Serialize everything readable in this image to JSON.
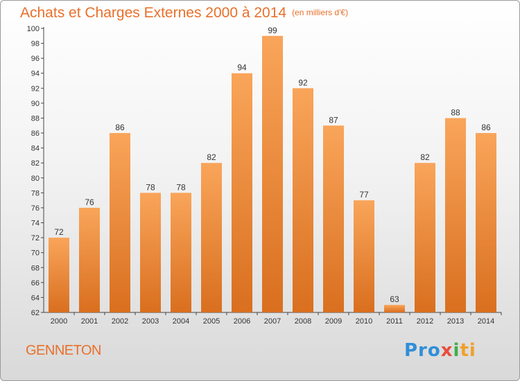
{
  "header": {
    "title": "Achats et Charges Externes 2000 à 2014",
    "unit": "(en milliers d'€)"
  },
  "footer": {
    "commune": "GENNETON",
    "brand_parts": [
      "Pro",
      "x",
      "i",
      "ti"
    ]
  },
  "colors": {
    "accent": "#e8702a",
    "bar_top": "#f9a55a",
    "bar_bottom": "#d96f1f"
  },
  "chart_data": {
    "type": "bar",
    "title": "Achats et Charges Externes 2000 à 2014",
    "subtitle": "(en milliers d'€)",
    "xlabel": "",
    "ylabel": "",
    "categories": [
      "2000",
      "2001",
      "2002",
      "2003",
      "2004",
      "2005",
      "2006",
      "2007",
      "2008",
      "2009",
      "2010",
      "2011",
      "2012",
      "2013",
      "2014"
    ],
    "values": [
      72,
      76,
      86,
      78,
      78,
      82,
      94,
      99,
      92,
      87,
      77,
      63,
      82,
      88,
      86
    ],
    "ylim": [
      62,
      100
    ],
    "yticks": [
      62,
      64,
      66,
      68,
      70,
      72,
      74,
      76,
      78,
      80,
      82,
      84,
      86,
      88,
      90,
      92,
      94,
      96,
      98,
      100
    ],
    "grid": false,
    "legend": "none"
  }
}
